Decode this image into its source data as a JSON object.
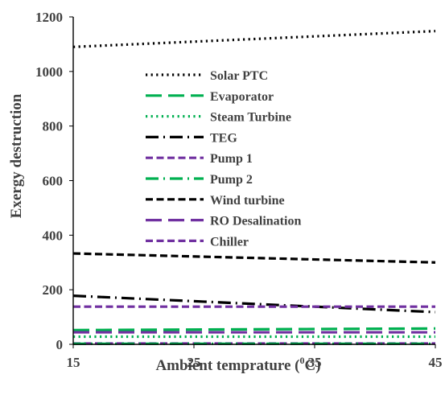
{
  "chart_data": {
    "type": "line",
    "xlabel": "Ambient temprature (",
    "xlabel_sup": "0",
    "xlabel_suffix": "C)",
    "ylabel": "Exergy destruction",
    "xlim": [
      15,
      45
    ],
    "ylim": [
      0,
      1200
    ],
    "xticks": [
      15,
      25,
      35,
      45
    ],
    "yticks": [
      0,
      200,
      400,
      600,
      800,
      1000,
      1200
    ],
    "grid": false,
    "legend_position": "upper-left inside",
    "series": [
      {
        "name": "Solar PTC",
        "x": [
          15,
          45
        ],
        "y": [
          1090,
          1148
        ],
        "color": "#000000",
        "dash": "dot"
      },
      {
        "name": "Evaporator",
        "x": [
          15,
          45
        ],
        "y": [
          52,
          58
        ],
        "color": "#00b050",
        "dash": "longdash"
      },
      {
        "name": "Steam Turbine",
        "x": [
          15,
          45
        ],
        "y": [
          28,
          28
        ],
        "color": "#00b050",
        "dash": "dot"
      },
      {
        "name": "TEG",
        "x": [
          15,
          45
        ],
        "y": [
          178,
          118
        ],
        "color": "#000000",
        "dash": "dashdot"
      },
      {
        "name": "Pump 1",
        "x": [
          15,
          45
        ],
        "y": [
          3,
          3
        ],
        "color": "#7030a0",
        "dash": "dash"
      },
      {
        "name": "Pump 2",
        "x": [
          15,
          45
        ],
        "y": [
          2,
          2
        ],
        "color": "#00b050",
        "dash": "dashdot"
      },
      {
        "name": "Wind turbine",
        "x": [
          15,
          45
        ],
        "y": [
          333,
          300
        ],
        "color": "#000000",
        "dash": "dash"
      },
      {
        "name": "RO Desalination",
        "x": [
          15,
          45
        ],
        "y": [
          44,
          44
        ],
        "color": "#7030a0",
        "dash": "longdash"
      },
      {
        "name": "Chiller",
        "x": [
          15,
          45
        ],
        "y": [
          138,
          138
        ],
        "color": "#7030a0",
        "dash": "dash"
      }
    ]
  }
}
